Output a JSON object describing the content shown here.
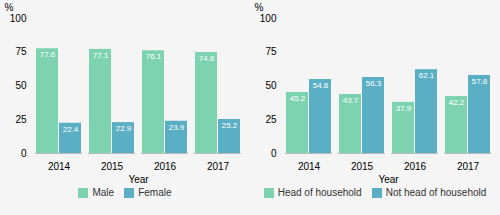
{
  "chart_data": [
    {
      "type": "bar",
      "categories": [
        "2014",
        "2015",
        "2016",
        "2017"
      ],
      "series": [
        {
          "name": "Male",
          "color": "#7dd3b0",
          "values": [
            77.6,
            77.1,
            76.1,
            74.8
          ]
        },
        {
          "name": "Female",
          "color": "#5aafc4",
          "values": [
            22.4,
            22.9,
            23.9,
            25.2
          ]
        }
      ],
      "xlabel": "Year",
      "ylabel": "%",
      "ylim": [
        0,
        100
      ],
      "yticks": [
        0,
        25,
        50,
        75,
        100
      ],
      "grid": false,
      "legend": "bottom",
      "data_labels": true
    },
    {
      "type": "bar",
      "categories": [
        "2014",
        "2015",
        "2016",
        "2017"
      ],
      "series": [
        {
          "name": "Head of household",
          "color": "#7dd3b0",
          "values": [
            45.2,
            43.7,
            37.9,
            42.2
          ]
        },
        {
          "name": "Not head of household",
          "color": "#5aafc4",
          "values": [
            54.8,
            56.3,
            62.1,
            57.8
          ]
        }
      ],
      "xlabel": "Year",
      "ylabel": "%",
      "ylim": [
        0,
        100
      ],
      "yticks": [
        0,
        25,
        50,
        75,
        100
      ],
      "grid": false,
      "legend": "bottom",
      "data_labels": true
    }
  ]
}
